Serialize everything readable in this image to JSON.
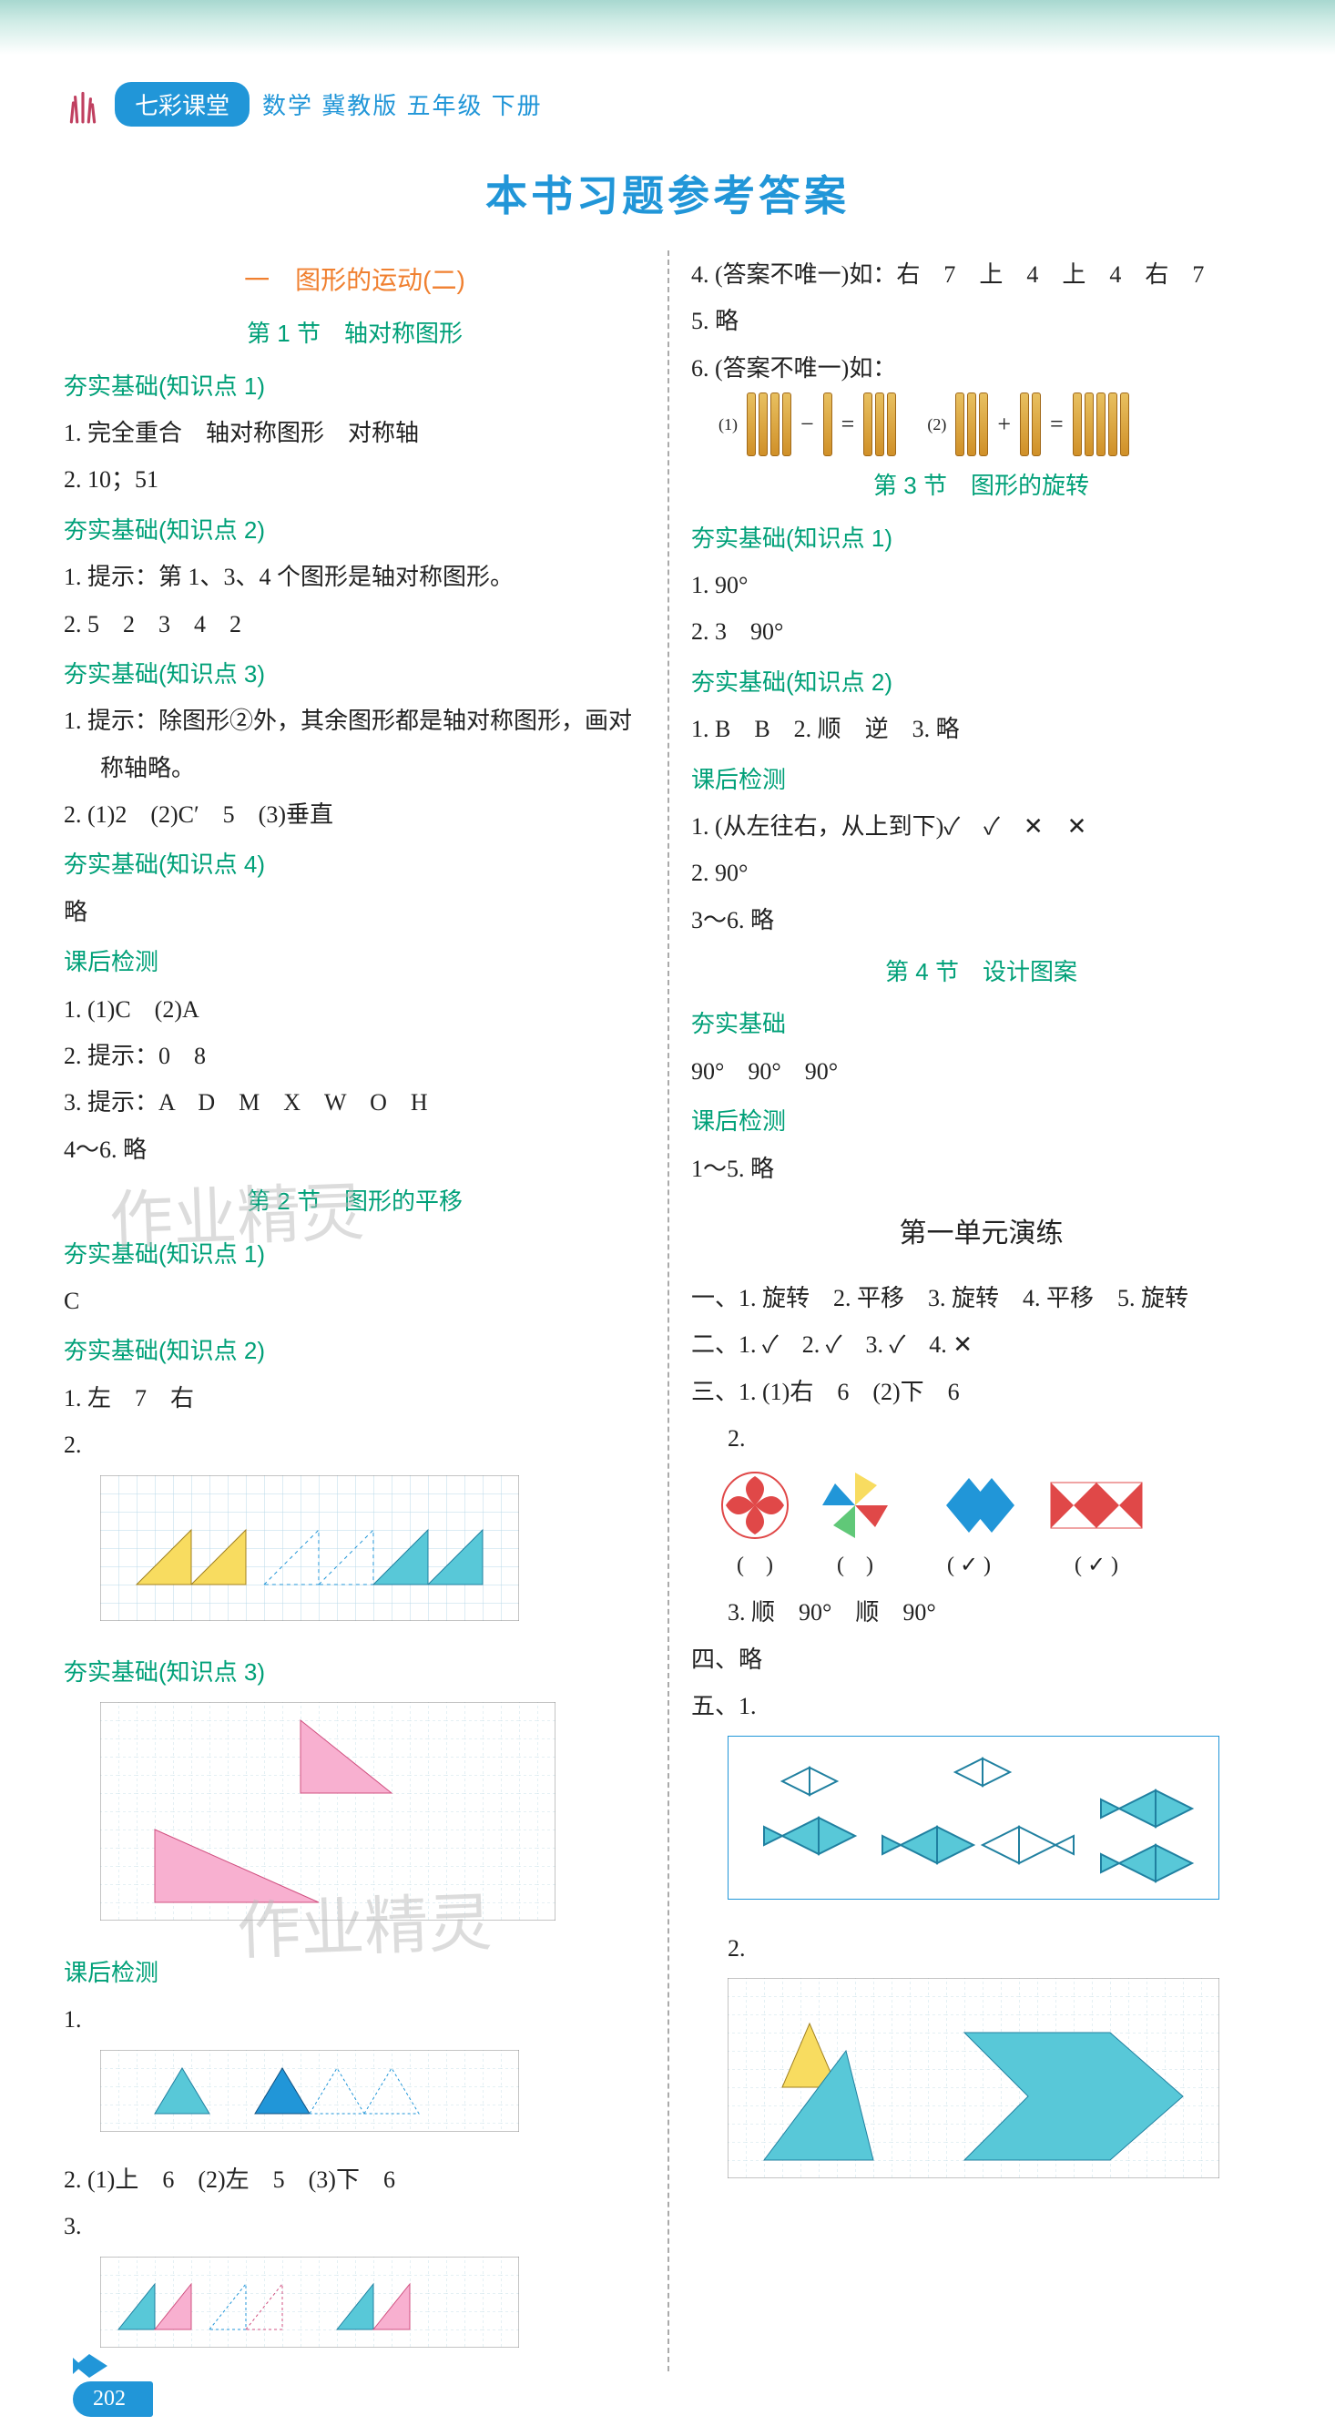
{
  "header": {
    "badge": "七彩课堂",
    "subject": "数学  冀教版  五年级  下册"
  },
  "main_title": "本书习题参考答案",
  "page_number": "202",
  "colors": {
    "accent_blue": "#2196d8",
    "section_green": "#00a078",
    "chapter_orange": "#f08030",
    "text": "#222222",
    "grid": "#b8d8e8",
    "yellow": "#f8dc60",
    "cyan": "#58c8d8",
    "pink": "#f8b0d0",
    "blue_fill": "#2196d8",
    "red": "#e04848",
    "green_fill": "#60c878"
  },
  "left": {
    "chapter": "一　图形的运动(二)",
    "sec1": {
      "title": "第 1 节　轴对称图形",
      "k1_head": "夯实基础(知识点 1)",
      "k1_l1": "1. 完全重合　轴对称图形　对称轴",
      "k1_l2": "2. 10；51",
      "k2_head": "夯实基础(知识点 2)",
      "k2_l1": "1. 提示：第 1、3、4 个图形是轴对称图形。",
      "k2_l2": "2. 5　2　3　4　2",
      "k3_head": "夯实基础(知识点 3)",
      "k3_l1": "1. 提示：除图形②外，其余图形都是轴对称图形，画对",
      "k3_l1b": "称轴略。",
      "k3_l2": "2. (1)2　(2)C′　5　(3)垂直",
      "k4_head": "夯实基础(知识点 4)",
      "k4_l1": "略",
      "test_head": "课后检测",
      "t1": "1. (1)C　(2)A",
      "t2": "2. 提示：0　8",
      "t3": "3. 提示：A　D　M　X　W　O　H",
      "t4": "4～6. 略"
    },
    "sec2": {
      "title": "第 2 节　图形的平移",
      "k1_head": "夯实基础(知识点 1)",
      "k1_l1": "C",
      "k2_head": "夯实基础(知识点 2)",
      "k2_l1": "1. 左　7　右",
      "k2_l2": "2.",
      "k3_head": "夯实基础(知识点 3)",
      "test_head": "课后检测",
      "t1": "1.",
      "t2": "2. (1)上　6　(2)左　5　(3)下　6",
      "t3": "3."
    }
  },
  "right": {
    "pre": {
      "l4": "4. (答案不唯一)如：右　7　上　4　上　4　右　7",
      "l5": "5. 略",
      "l6": "6. (答案不唯一)如：",
      "eq1_label": "(1)",
      "eq2_label": "(2)",
      "sticks": {
        "a1": 4,
        "b1": 1,
        "c1": 3,
        "a2": 3,
        "b2": 2,
        "c2": 5
      }
    },
    "sec3": {
      "title": "第 3 节　图形的旋转",
      "k1_head": "夯实基础(知识点 1)",
      "k1_l1": "1. 90°",
      "k1_l2": "2. 3　90°",
      "k2_head": "夯实基础(知识点 2)",
      "k2_l1": "1. B　B　2. 顺　逆　3. 略",
      "test_head": "课后检测",
      "t1": "1. (从左往右，从上到下)✓　✓　✕　✕",
      "t2": "2. 90°",
      "t3": "3～6. 略"
    },
    "sec4": {
      "title": "第 4 节　设计图案",
      "k_head": "夯实基础",
      "k_l1": "90°　90°　90°",
      "test_head": "课后检测",
      "t1": "1～5. 略"
    },
    "unit": {
      "title": "第一单元演练",
      "l1": "一、1. 旋转　2. 平移　3. 旋转　4. 平移　5. 旋转",
      "l2": "二、1. ✓　2. ✓　3. ✓　4. ✕",
      "l3": "三、1. (1)右　6　(2)下　6",
      "l3b": "2.",
      "pat_labels": [
        "(　)",
        "(　)",
        "( ✓ )",
        "( ✓ )"
      ],
      "l3c": "3. 顺　90°　顺　90°",
      "l4": "四、略",
      "l5": "五、1.",
      "l5b": "2."
    }
  },
  "watermarks": [
    "作业精灵",
    "作业精灵"
  ]
}
